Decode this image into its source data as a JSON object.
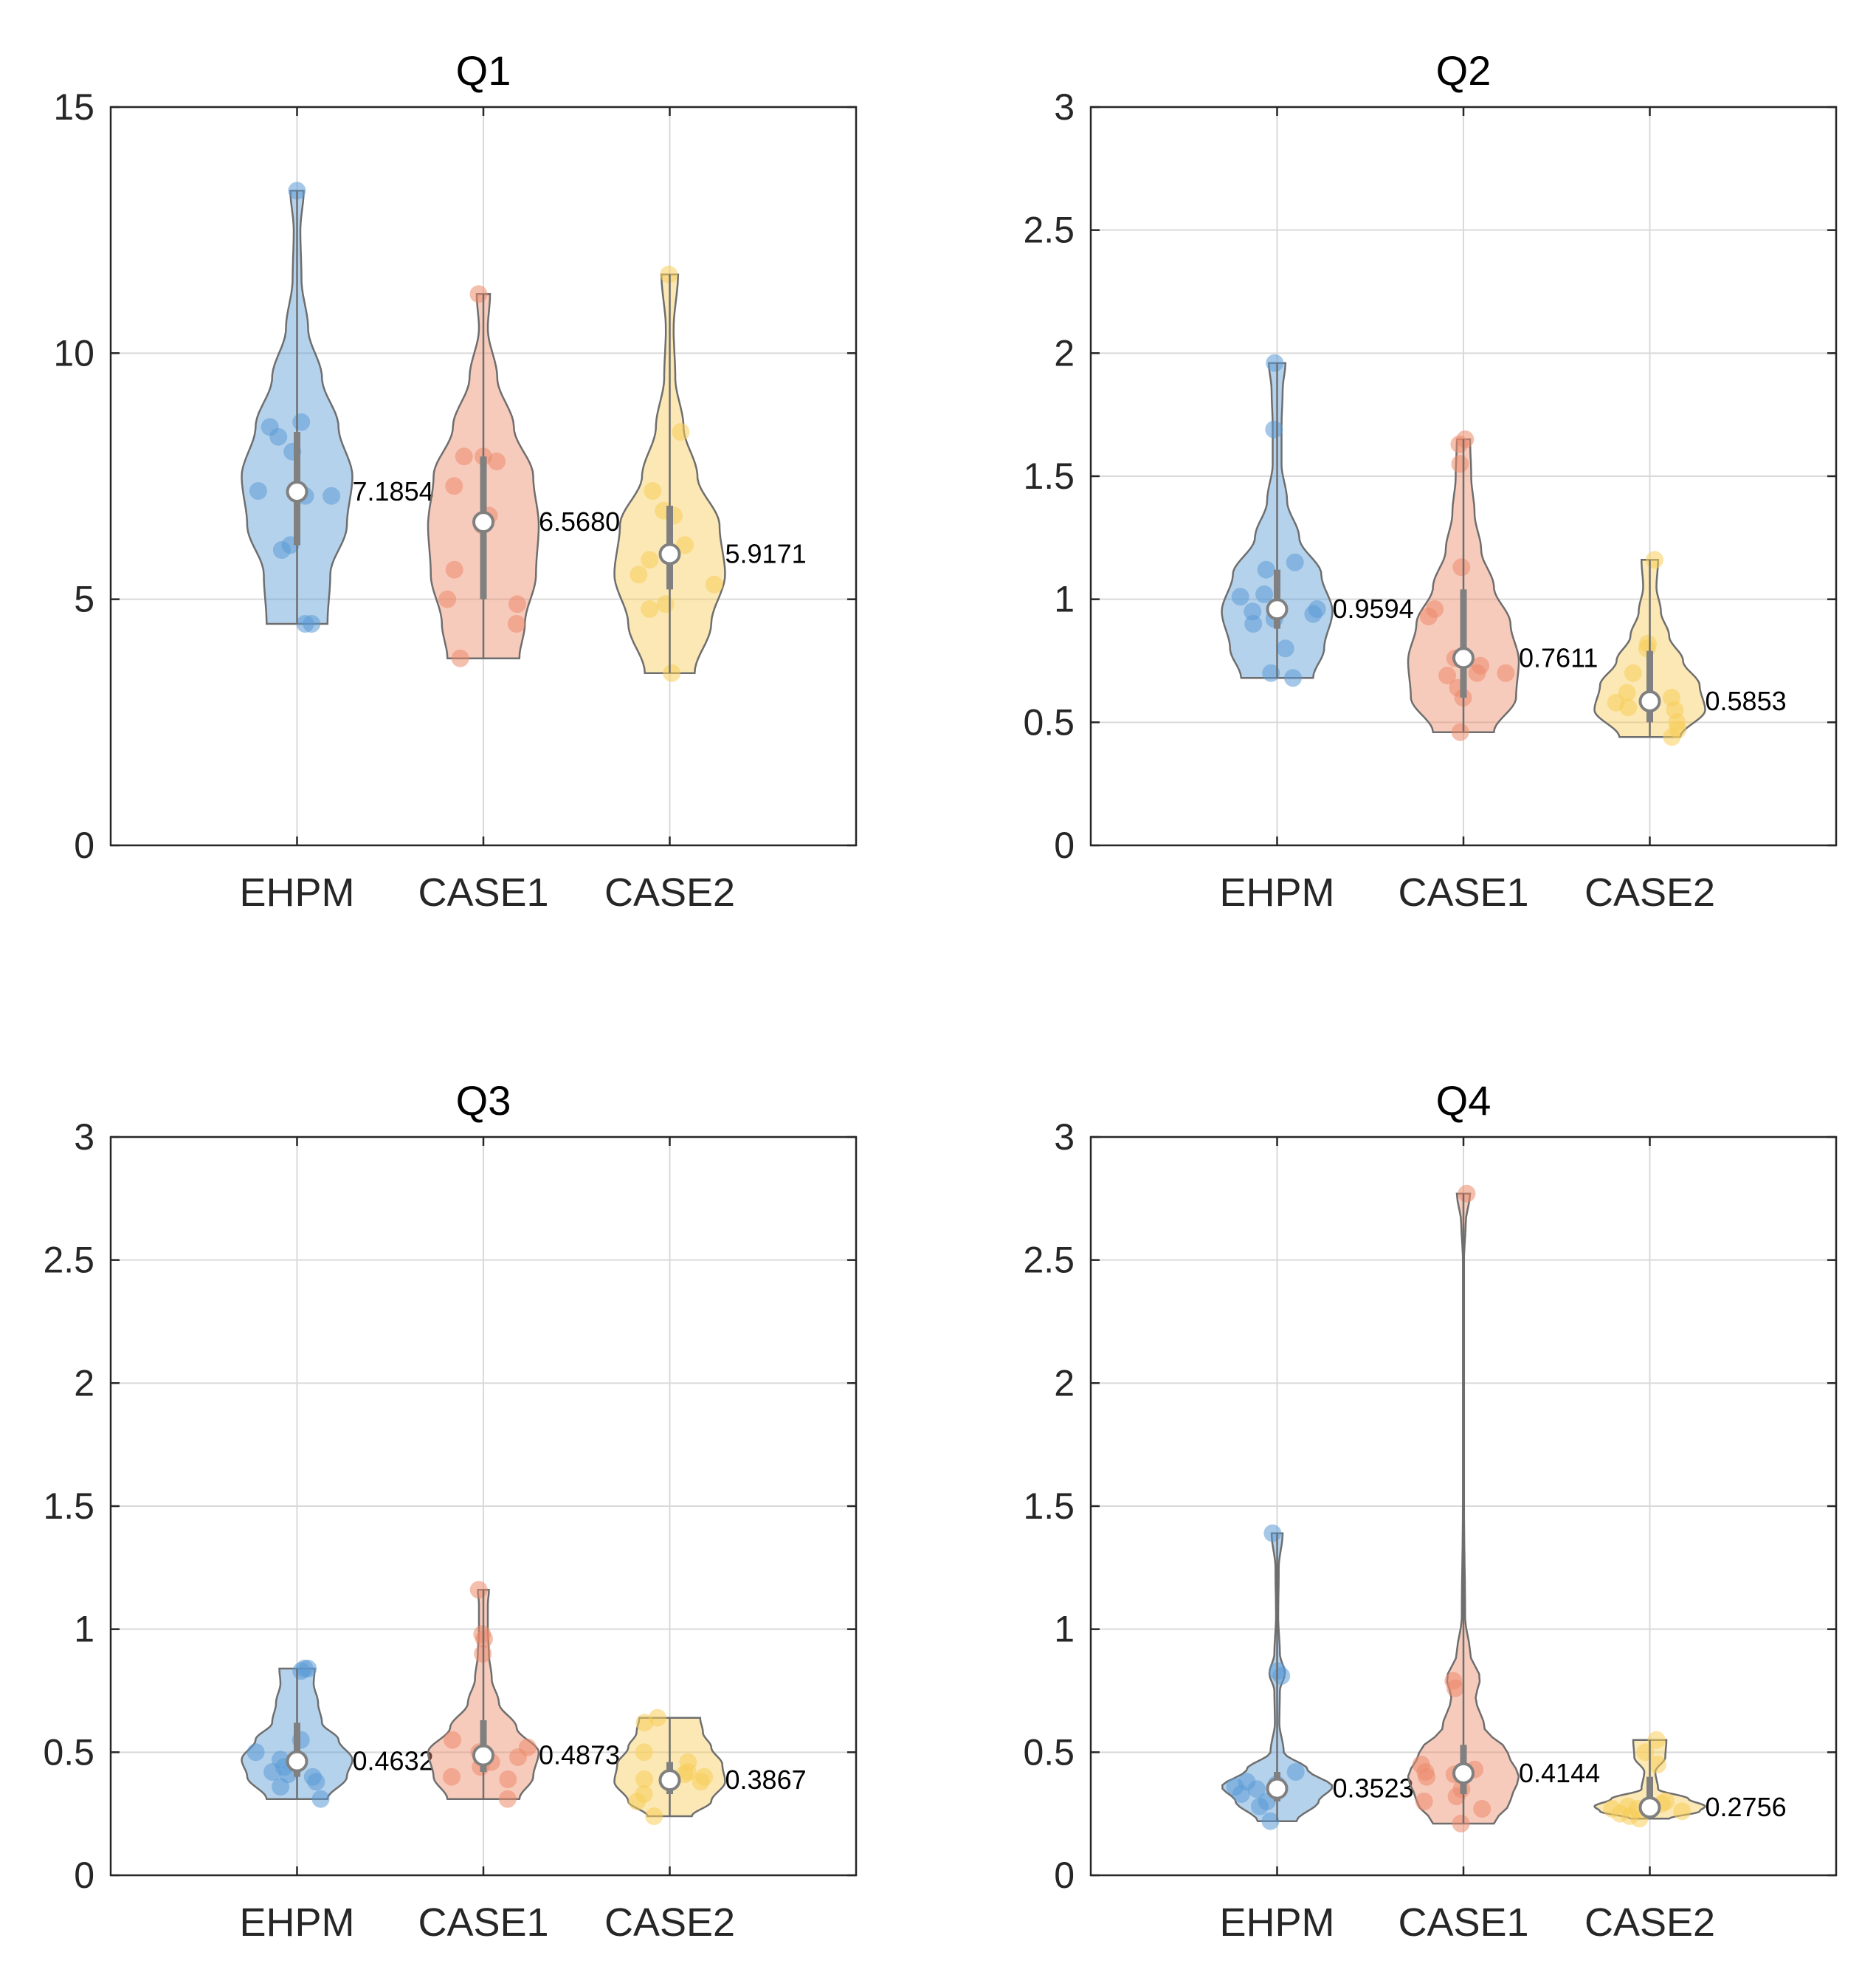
{
  "figure": {
    "name": "violin-plot-grid"
  },
  "colors": {
    "EHPM": "#5b9bd5",
    "CASE1": "#ed8b6b",
    "CASE2": "#f7cd5a",
    "outline": "#6e6e6e",
    "axis": "#262626",
    "grid": "#d9d9d9"
  },
  "chart_data": [
    {
      "type": "violin",
      "title": "Q1",
      "categories": [
        "EHPM",
        "CASE1",
        "CASE2"
      ],
      "ylim": [
        0,
        15
      ],
      "yticks": [
        0,
        5,
        10,
        15
      ],
      "ytick_labels": [
        "0",
        "5",
        "10",
        "15"
      ],
      "grid": true,
      "series": [
        {
          "name": "EHPM",
          "mean": 7.1854,
          "mean_label": "7.1854",
          "q1": 6.1,
          "q3": 8.4,
          "min": 4.5,
          "max": 13.3,
          "points": [
            13.3,
            8.6,
            8.5,
            8.3,
            8.0,
            7.2,
            7.2,
            7.1,
            7.1,
            6.1,
            6.0,
            4.5,
            4.5
          ],
          "density": [
            [
              4.5,
              0.55
            ],
            [
              5.5,
              0.6
            ],
            [
              6.5,
              0.9
            ],
            [
              7.5,
              1.0
            ],
            [
              8.5,
              0.75
            ],
            [
              9.5,
              0.45
            ],
            [
              10.5,
              0.2
            ],
            [
              11.5,
              0.08
            ],
            [
              12.5,
              0.06
            ],
            [
              13.3,
              0.12
            ]
          ]
        },
        {
          "name": "CASE1",
          "mean": 6.568,
          "mean_label": "6.5680",
          "q1": 5.0,
          "q3": 7.9,
          "min": 3.8,
          "max": 11.2,
          "points": [
            11.2,
            7.9,
            7.9,
            7.8,
            7.3,
            6.7,
            6.5,
            5.6,
            5.0,
            4.9,
            4.5,
            3.8
          ],
          "density": [
            [
              3.8,
              0.65
            ],
            [
              4.5,
              0.75
            ],
            [
              5.5,
              0.95
            ],
            [
              6.5,
              1.0
            ],
            [
              7.5,
              0.9
            ],
            [
              8.5,
              0.55
            ],
            [
              9.5,
              0.25
            ],
            [
              10.5,
              0.08
            ],
            [
              11.2,
              0.12
            ]
          ]
        },
        {
          "name": "CASE2",
          "mean": 5.9171,
          "mean_label": "5.9171",
          "q1": 5.2,
          "q3": 6.9,
          "min": 3.5,
          "max": 11.6,
          "points": [
            11.6,
            8.4,
            7.2,
            6.8,
            6.7,
            6.1,
            5.8,
            5.5,
            5.3,
            4.9,
            4.8,
            3.5
          ],
          "density": [
            [
              3.5,
              0.45
            ],
            [
              4.5,
              0.75
            ],
            [
              5.5,
              1.0
            ],
            [
              6.5,
              0.9
            ],
            [
              7.5,
              0.5
            ],
            [
              8.5,
              0.25
            ],
            [
              9.5,
              0.1
            ],
            [
              10.5,
              0.07
            ],
            [
              11.6,
              0.15
            ]
          ]
        }
      ]
    },
    {
      "type": "violin",
      "title": "Q2",
      "categories": [
        "EHPM",
        "CASE1",
        "CASE2"
      ],
      "ylim": [
        0,
        3
      ],
      "yticks": [
        0,
        0.5,
        1,
        1.5,
        2,
        2.5,
        3
      ],
      "ytick_labels": [
        "0",
        "0.5",
        "1",
        "1.5",
        "2",
        "2.5",
        "3"
      ],
      "grid": true,
      "series": [
        {
          "name": "EHPM",
          "mean": 0.9594,
          "mean_label": "0.9594",
          "q1": 0.88,
          "q3": 1.12,
          "min": 0.68,
          "max": 1.96,
          "points": [
            1.96,
            1.69,
            1.15,
            1.12,
            1.02,
            1.01,
            0.96,
            0.95,
            0.94,
            0.92,
            0.9,
            0.8,
            0.7,
            0.68
          ],
          "density": [
            [
              0.68,
              0.65
            ],
            [
              0.8,
              0.85
            ],
            [
              0.95,
              1.0
            ],
            [
              1.1,
              0.8
            ],
            [
              1.25,
              0.4
            ],
            [
              1.4,
              0.18
            ],
            [
              1.55,
              0.08
            ],
            [
              1.7,
              0.08
            ],
            [
              1.85,
              0.1
            ],
            [
              1.96,
              0.15
            ]
          ]
        },
        {
          "name": "CASE1",
          "mean": 0.7611,
          "mean_label": "0.7611",
          "q1": 0.6,
          "q3": 1.04,
          "min": 0.46,
          "max": 1.65,
          "points": [
            1.65,
            1.63,
            1.55,
            1.13,
            0.96,
            0.93,
            0.76,
            0.73,
            0.7,
            0.7,
            0.69,
            0.64,
            0.6,
            0.46
          ],
          "density": [
            [
              0.46,
              0.55
            ],
            [
              0.6,
              0.95
            ],
            [
              0.75,
              1.0
            ],
            [
              0.9,
              0.85
            ],
            [
              1.05,
              0.55
            ],
            [
              1.2,
              0.32
            ],
            [
              1.35,
              0.2
            ],
            [
              1.5,
              0.14
            ],
            [
              1.65,
              0.12
            ]
          ]
        },
        {
          "name": "CASE2",
          "mean": 0.5853,
          "mean_label": "0.5853",
          "q1": 0.5,
          "q3": 0.79,
          "min": 0.44,
          "max": 1.16,
          "points": [
            1.16,
            0.82,
            0.8,
            0.7,
            0.62,
            0.6,
            0.58,
            0.56,
            0.55,
            0.5,
            0.47,
            0.44
          ],
          "density": [
            [
              0.44,
              0.55
            ],
            [
              0.55,
              1.0
            ],
            [
              0.65,
              0.9
            ],
            [
              0.75,
              0.6
            ],
            [
              0.85,
              0.35
            ],
            [
              0.95,
              0.2
            ],
            [
              1.05,
              0.12
            ],
            [
              1.16,
              0.15
            ]
          ]
        }
      ]
    },
    {
      "type": "violin",
      "title": "Q3",
      "categories": [
        "EHPM",
        "CASE1",
        "CASE2"
      ],
      "ylim": [
        0,
        3
      ],
      "yticks": [
        0,
        0.5,
        1,
        1.5,
        2,
        2.5,
        3
      ],
      "ytick_labels": [
        "0",
        "0.5",
        "1",
        "1.5",
        "2",
        "2.5",
        "3"
      ],
      "grid": true,
      "series": [
        {
          "name": "EHPM",
          "mean": 0.4632,
          "mean_label": "0.4632",
          "q1": 0.4,
          "q3": 0.62,
          "min": 0.31,
          "max": 0.84,
          "points": [
            0.84,
            0.84,
            0.83,
            0.55,
            0.5,
            0.47,
            0.44,
            0.42,
            0.41,
            0.4,
            0.38,
            0.36,
            0.31
          ],
          "density": [
            [
              0.31,
              0.55
            ],
            [
              0.4,
              0.9
            ],
            [
              0.47,
              1.0
            ],
            [
              0.55,
              0.75
            ],
            [
              0.62,
              0.45
            ],
            [
              0.7,
              0.38
            ],
            [
              0.78,
              0.3
            ],
            [
              0.84,
              0.32
            ]
          ]
        },
        {
          "name": "CASE1",
          "mean": 0.4873,
          "mean_label": "0.4873",
          "q1": 0.42,
          "q3": 0.63,
          "min": 0.31,
          "max": 1.16,
          "points": [
            1.16,
            0.98,
            0.96,
            0.9,
            0.55,
            0.52,
            0.5,
            0.48,
            0.46,
            0.44,
            0.4,
            0.39,
            0.31
          ],
          "density": [
            [
              0.31,
              0.65
            ],
            [
              0.4,
              0.9
            ],
            [
              0.5,
              1.0
            ],
            [
              0.6,
              0.6
            ],
            [
              0.7,
              0.28
            ],
            [
              0.8,
              0.15
            ],
            [
              0.9,
              0.1
            ],
            [
              1.0,
              0.08
            ],
            [
              1.1,
              0.08
            ],
            [
              1.16,
              0.1
            ]
          ]
        },
        {
          "name": "CASE2",
          "mean": 0.3867,
          "mean_label": "0.3867",
          "q1": 0.33,
          "q3": 0.46,
          "min": 0.24,
          "max": 0.64,
          "points": [
            0.64,
            0.62,
            0.5,
            0.46,
            0.42,
            0.41,
            0.4,
            0.39,
            0.38,
            0.33,
            0.3,
            0.24
          ],
          "density": [
            [
              0.24,
              0.4
            ],
            [
              0.3,
              0.75
            ],
            [
              0.38,
              1.0
            ],
            [
              0.45,
              0.95
            ],
            [
              0.52,
              0.75
            ],
            [
              0.58,
              0.6
            ],
            [
              0.64,
              0.55
            ]
          ]
        }
      ]
    },
    {
      "type": "violin",
      "title": "Q4",
      "categories": [
        "EHPM",
        "CASE1",
        "CASE2"
      ],
      "ylim": [
        0,
        3
      ],
      "yticks": [
        0,
        0.5,
        1,
        1.5,
        2,
        2.5,
        3
      ],
      "ytick_labels": [
        "0",
        "0.5",
        "1",
        "1.5",
        "2",
        "2.5",
        "3"
      ],
      "grid": true,
      "series": [
        {
          "name": "EHPM",
          "mean": 0.3523,
          "mean_label": "0.3523",
          "q1": 0.3,
          "q3": 0.42,
          "min": 0.22,
          "max": 1.39,
          "points": [
            1.39,
            0.83,
            0.81,
            0.42,
            0.38,
            0.37,
            0.36,
            0.35,
            0.35,
            0.33,
            0.3,
            0.28,
            0.22
          ],
          "density": [
            [
              0.22,
              0.35
            ],
            [
              0.3,
              0.75
            ],
            [
              0.36,
              1.0
            ],
            [
              0.43,
              0.55
            ],
            [
              0.5,
              0.12
            ],
            [
              0.62,
              0.04
            ],
            [
              0.75,
              0.05
            ],
            [
              0.82,
              0.14
            ],
            [
              0.9,
              0.05
            ],
            [
              1.05,
              0.02
            ],
            [
              1.25,
              0.03
            ],
            [
              1.39,
              0.1
            ]
          ]
        },
        {
          "name": "CASE1",
          "mean": 0.4144,
          "mean_label": "0.4144",
          "q1": 0.33,
          "q3": 0.53,
          "min": 0.21,
          "max": 2.77,
          "points": [
            2.77,
            0.79,
            0.76,
            0.45,
            0.43,
            0.42,
            0.41,
            0.4,
            0.35,
            0.32,
            0.3,
            0.27,
            0.21
          ],
          "density": [
            [
              0.21,
              0.55
            ],
            [
              0.3,
              0.85
            ],
            [
              0.4,
              1.0
            ],
            [
              0.5,
              0.8
            ],
            [
              0.6,
              0.38
            ],
            [
              0.72,
              0.22
            ],
            [
              0.8,
              0.3
            ],
            [
              0.9,
              0.12
            ],
            [
              1.05,
              0.03
            ],
            [
              1.5,
              0.01
            ],
            [
              2.0,
              0.01
            ],
            [
              2.5,
              0.01
            ],
            [
              2.65,
              0.04
            ],
            [
              2.77,
              0.12
            ]
          ]
        },
        {
          "name": "CASE2",
          "mean": 0.2756,
          "mean_label": "0.2756",
          "q1": 0.26,
          "q3": 0.4,
          "min": 0.23,
          "max": 0.55,
          "points": [
            0.55,
            0.5,
            0.45,
            0.3,
            0.29,
            0.28,
            0.27,
            0.27,
            0.26,
            0.25,
            0.24,
            0.23
          ],
          "density": [
            [
              0.23,
              0.35
            ],
            [
              0.26,
              0.9
            ],
            [
              0.28,
              1.0
            ],
            [
              0.31,
              0.7
            ],
            [
              0.35,
              0.15
            ],
            [
              0.42,
              0.1
            ],
            [
              0.48,
              0.28
            ],
            [
              0.55,
              0.3
            ]
          ]
        }
      ]
    }
  ]
}
